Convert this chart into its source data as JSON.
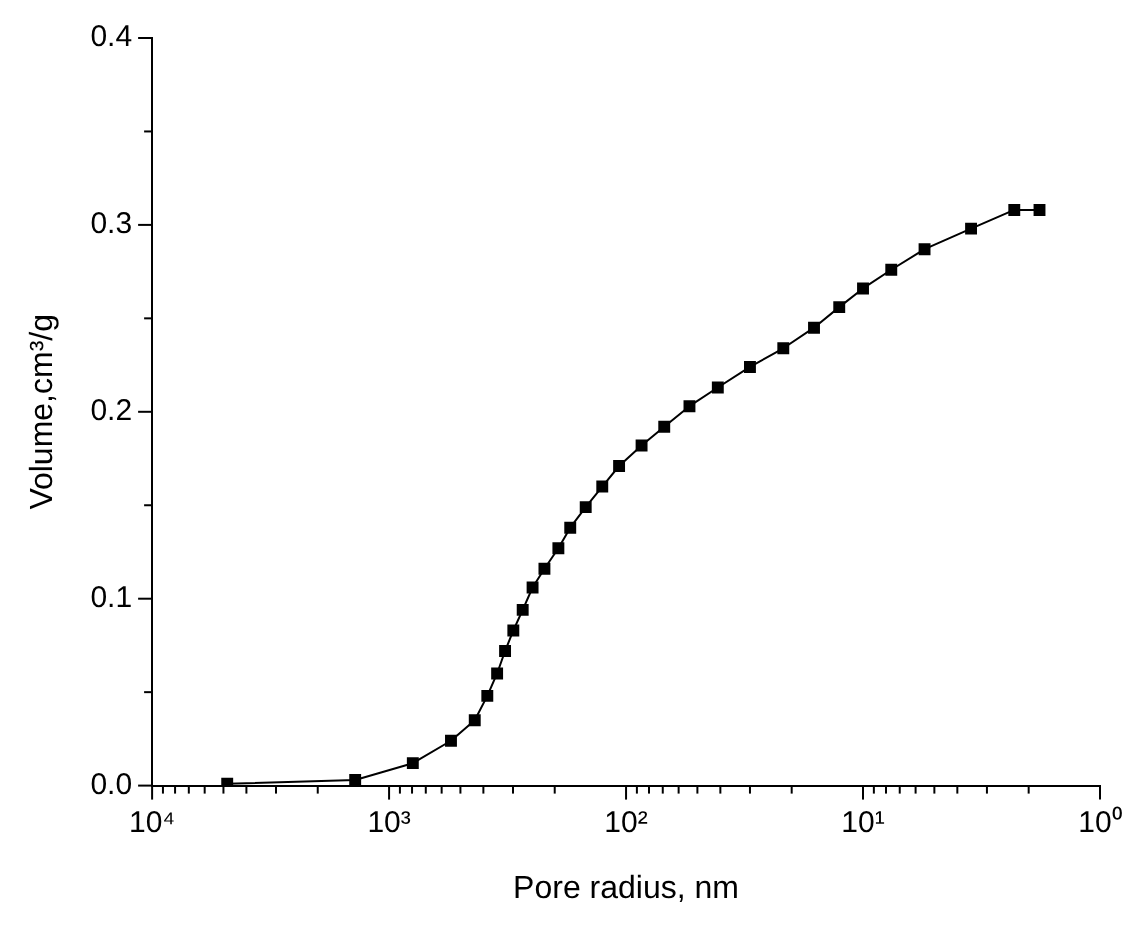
{
  "chart_data": {
    "type": "line",
    "xlabel": "Pore radius, nm",
    "ylabel": "Volume,cm³/g",
    "log": "x",
    "xlim": [
      10000,
      1
    ],
    "xticks": [
      {
        "value": 10000,
        "label": "10⁴"
      },
      {
        "value": 9000,
        "label": null
      },
      {
        "value": 8000,
        "label": null
      },
      {
        "value": 7000,
        "label": null
      },
      {
        "value": 6000,
        "label": null
      },
      {
        "value": 5000,
        "label": null
      },
      {
        "value": 4000,
        "label": null
      },
      {
        "value": 3000,
        "label": null
      },
      {
        "value": 2000,
        "label": null
      },
      {
        "value": 1000,
        "label": "10³"
      },
      {
        "value": 900,
        "label": null
      },
      {
        "value": 800,
        "label": null
      },
      {
        "value": 700,
        "label": null
      },
      {
        "value": 600,
        "label": null
      },
      {
        "value": 500,
        "label": null
      },
      {
        "value": 400,
        "label": null
      },
      {
        "value": 300,
        "label": null
      },
      {
        "value": 200,
        "label": null
      },
      {
        "value": 100,
        "label": "10²"
      },
      {
        "value": 90,
        "label": null
      },
      {
        "value": 80,
        "label": null
      },
      {
        "value": 70,
        "label": null
      },
      {
        "value": 60,
        "label": null
      },
      {
        "value": 50,
        "label": null
      },
      {
        "value": 40,
        "label": null
      },
      {
        "value": 30,
        "label": null
      },
      {
        "value": 20,
        "label": null
      },
      {
        "value": 10,
        "label": "10¹"
      },
      {
        "value": 9,
        "label": null
      },
      {
        "value": 8,
        "label": null
      },
      {
        "value": 7,
        "label": null
      },
      {
        "value": 6,
        "label": null
      },
      {
        "value": 5,
        "label": null
      },
      {
        "value": 4,
        "label": null
      },
      {
        "value": 3,
        "label": null
      },
      {
        "value": 2,
        "label": null
      },
      {
        "value": 1,
        "label": "10⁰"
      }
    ],
    "ylim": [
      0,
      0.4
    ],
    "yticks": [
      {
        "value": 0,
        "label": "0.0"
      },
      {
        "value": 0.05,
        "label": null
      },
      0.1,
      {
        "value": 0.15,
        "label": null
      },
      0.2,
      {
        "value": 0.25,
        "label": null
      },
      0.3,
      {
        "value": 0.35,
        "label": null
      },
      0.4
    ],
    "grid": false,
    "legend": false,
    "marker": "square",
    "line_style": "solid",
    "x": [
      4820,
      1390,
      794,
      548,
      435,
      385,
      350,
      324,
      299,
      273,
      248,
      221,
      193,
      172,
      148,
      126,
      107,
      86,
      69,
      54,
      41,
      30,
      21.7,
      16.1,
      12.6,
      10.0,
      7.6,
      5.5,
      3.5,
      2.3,
      1.8
    ],
    "series": [
      {
        "color": "#000000",
        "values": [
          0.001,
          0.003,
          0.012,
          0.024,
          0.035,
          0.048,
          0.06,
          0.072,
          0.083,
          0.094,
          0.106,
          0.116,
          0.127,
          0.138,
          0.149,
          0.16,
          0.171,
          0.182,
          0.192,
          0.203,
          0.213,
          0.224,
          0.234,
          0.245,
          0.256,
          0.266,
          0.276,
          0.287,
          0.298,
          0.308,
          0.308
        ]
      }
    ]
  }
}
